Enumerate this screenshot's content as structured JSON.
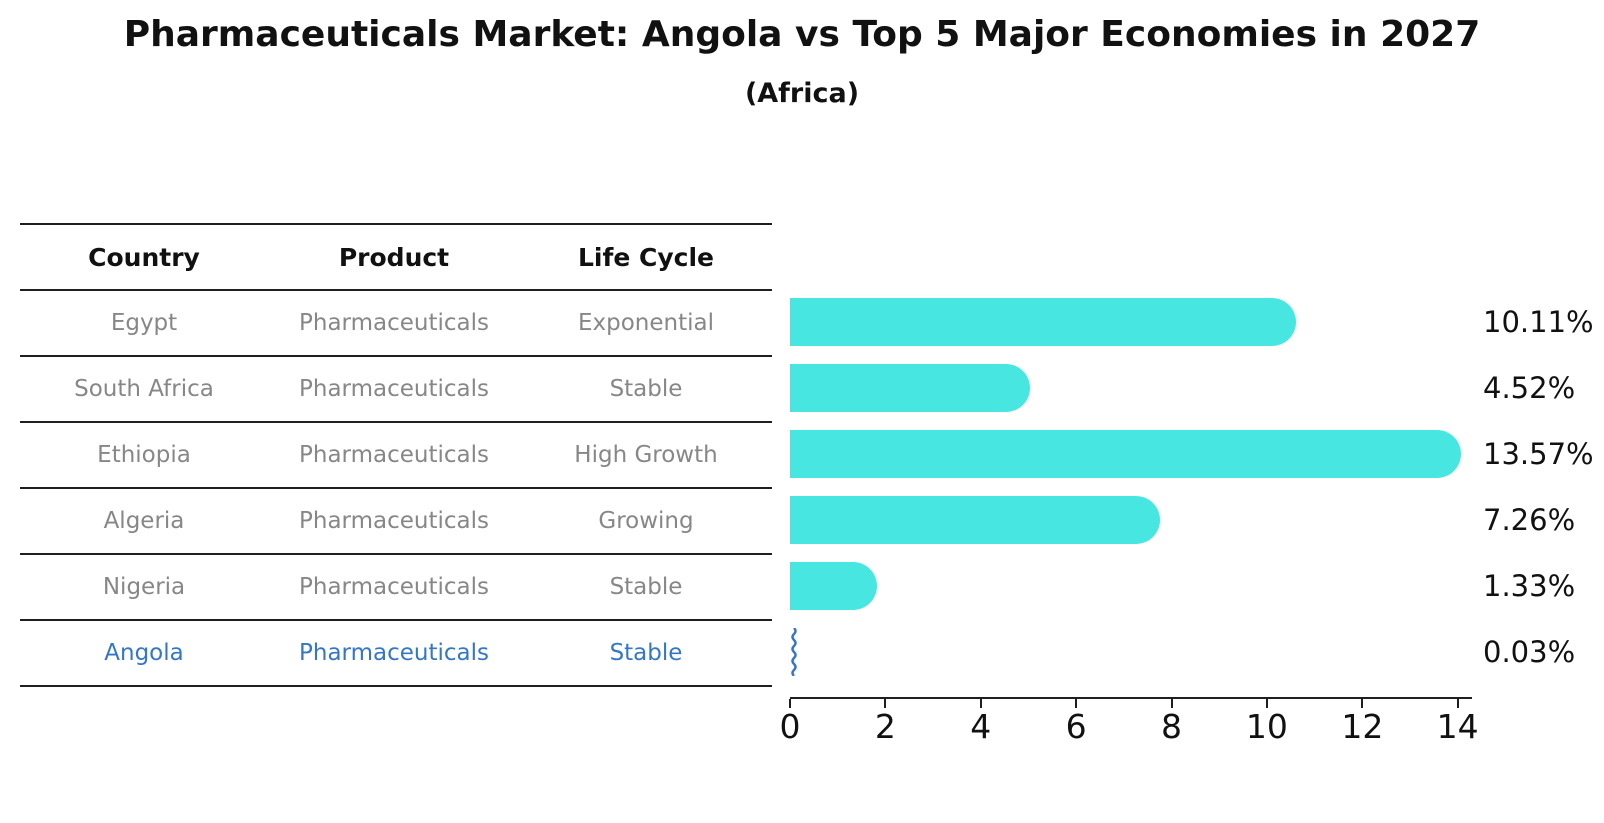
{
  "title": "Pharmaceuticals Market: Angola vs Top 5 Major Economies in 2027",
  "subtitle": "(Africa)",
  "table": {
    "headers": {
      "country": "Country",
      "product": "Product",
      "life_cycle": "Life Cycle"
    },
    "rows": [
      {
        "country": "Egypt",
        "product": "Pharmaceuticals",
        "life_cycle": "Exponential"
      },
      {
        "country": "South Africa",
        "product": "Pharmaceuticals",
        "life_cycle": "Stable"
      },
      {
        "country": "Ethiopia",
        "product": "Pharmaceuticals",
        "life_cycle": "High Growth"
      },
      {
        "country": "Algeria",
        "product": "Pharmaceuticals",
        "life_cycle": "Growing"
      },
      {
        "country": "Nigeria",
        "product": "Pharmaceuticals",
        "life_cycle": "Stable"
      },
      {
        "country": "Angola",
        "product": "Pharmaceuticals",
        "life_cycle": "Stable"
      }
    ]
  },
  "chart_data": {
    "type": "bar",
    "orientation": "horizontal",
    "title": "Pharmaceuticals Market: Angola vs Top 5 Major Economies in 2027",
    "subtitle": "(Africa)",
    "categories": [
      "Egypt",
      "South Africa",
      "Ethiopia",
      "Algeria",
      "Nigeria",
      "Angola"
    ],
    "values": [
      10.11,
      4.52,
      13.57,
      7.26,
      1.33,
      0.03
    ],
    "value_labels": [
      "10.11%",
      "4.52%",
      "13.57%",
      "7.26%",
      "1.33%",
      "0.03%"
    ],
    "xlabel": "",
    "ylabel": "",
    "xlim": [
      0,
      14.3
    ],
    "xticks": [
      "0",
      "2",
      "4",
      "6",
      "8",
      "10",
      "12",
      "14"
    ],
    "grid": false,
    "legend": false,
    "bar_color": "#47E6E1",
    "highlight_color": "#3377C6",
    "highlight_index": 5
  }
}
